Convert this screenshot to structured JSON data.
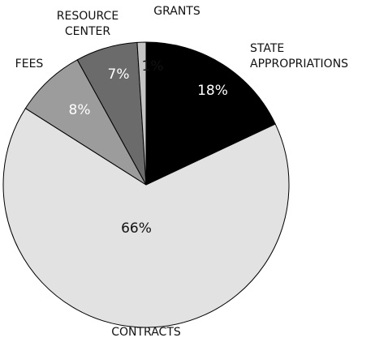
{
  "chart_data": {
    "type": "pie",
    "categories": [
      "STATE APPROPRIATIONS",
      "CONTRACTS",
      "FEES",
      "RESOURCE CENTER",
      "GRANTS"
    ],
    "values": [
      18,
      66,
      8,
      7,
      1
    ],
    "value_labels": [
      "18%",
      "66%",
      "8%",
      "7%",
      "1%"
    ],
    "colors": [
      "#000000",
      "#e2e2e2",
      "#9c9c9c",
      "#6b6b6b",
      "#c4c4c4"
    ]
  }
}
